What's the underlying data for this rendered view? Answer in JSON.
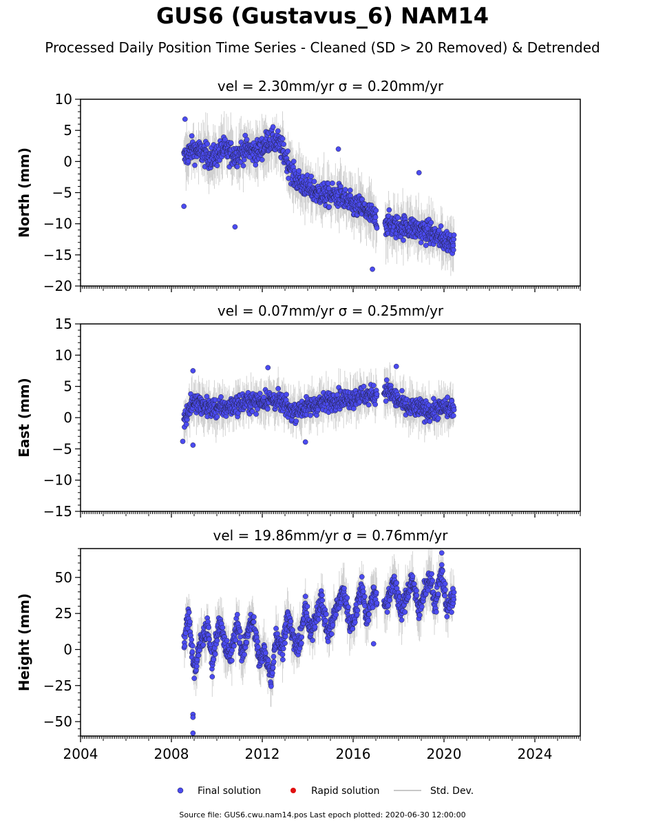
{
  "title": "GUS6 (Gustavus_6) NAM14",
  "subtitle": "Processed Daily Position Time Series - Cleaned (SD > 20 Removed) & Detrended",
  "source_note": "Source file: GUS6.cwu.nam14.pos  Last epoch plotted: 2020-06-30 12:00:00",
  "legend": {
    "final_label": "Final solution",
    "rapid_label": "Rapid solution",
    "sd_label": "Std. Dev."
  },
  "colors": {
    "final": "#4b4bf0",
    "rapid": "#e01010",
    "sd": "#c8c8c8"
  },
  "chart_data": [
    {
      "type": "scatter",
      "title": "vel = 2.30mm/yr   σ = 0.20mm/yr",
      "ylabel": "North (mm)",
      "xlim": [
        2004,
        2026
      ],
      "ylim": [
        -20,
        10
      ],
      "yticks": [
        -20,
        -15,
        -10,
        -5,
        0,
        5,
        10
      ],
      "xticks": [
        2004,
        2008,
        2012,
        2016,
        2020,
        2024
      ],
      "show_xticklabels": false,
      "series": [
        {
          "name": "Final solution",
          "x": [
            2008.55,
            2008.9,
            2009.3,
            2009.8,
            2010.3,
            2010.8,
            2011.3,
            2011.8,
            2012.3,
            2012.7,
            2013.0,
            2013.4,
            2013.9,
            2014.4,
            2014.9,
            2015.4,
            2015.9,
            2016.4,
            2016.9,
            2017.5,
            2017.9,
            2018.4,
            2018.9,
            2019.4,
            2019.9,
            2020.45
          ],
          "y": [
            0.5,
            2.0,
            1.5,
            0.5,
            2.0,
            1.0,
            2.0,
            1.5,
            3.5,
            3.0,
            1.0,
            -2.5,
            -4.0,
            -5.0,
            -5.5,
            -5.5,
            -7.0,
            -7.5,
            -9.0,
            -10.0,
            -10.5,
            -10.5,
            -11.0,
            -11.5,
            -12.5,
            -13.0
          ]
        }
      ],
      "outliers": [
        {
          "x": 2008.6,
          "y": 6.8
        },
        {
          "x": 2008.55,
          "y": -7.2
        },
        {
          "x": 2010.8,
          "y": -10.5
        },
        {
          "x": 2015.35,
          "y": 2.0
        },
        {
          "x": 2018.9,
          "y": -1.8
        },
        {
          "x": 2016.85,
          "y": -17.3
        }
      ]
    },
    {
      "type": "scatter",
      "title": "vel = 0.07mm/yr   σ = 0.25mm/yr",
      "ylabel": "East (mm)",
      "xlim": [
        2004,
        2026
      ],
      "ylim": [
        -15,
        15
      ],
      "yticks": [
        -15,
        -10,
        -5,
        0,
        5,
        10,
        15
      ],
      "xticks": [
        2004,
        2008,
        2012,
        2016,
        2020,
        2024
      ],
      "show_xticklabels": false,
      "series": [
        {
          "name": "Final solution",
          "x": [
            2008.55,
            2008.9,
            2009.3,
            2009.8,
            2010.3,
            2010.8,
            2011.3,
            2011.8,
            2012.3,
            2012.8,
            2013.3,
            2013.8,
            2014.3,
            2014.8,
            2015.3,
            2015.8,
            2016.3,
            2016.8,
            2017.5,
            2017.9,
            2018.4,
            2018.9,
            2019.4,
            2019.9,
            2020.45
          ],
          "y": [
            -0.5,
            2.5,
            2.0,
            1.5,
            1.5,
            2.0,
            2.5,
            2.5,
            3.0,
            2.5,
            1.0,
            1.5,
            2.0,
            2.5,
            3.0,
            3.0,
            3.5,
            3.5,
            4.5,
            3.0,
            1.5,
            1.5,
            1.0,
            1.5,
            1.5
          ]
        }
      ],
      "outliers": [
        {
          "x": 2008.5,
          "y": -3.8
        },
        {
          "x": 2008.95,
          "y": 7.5
        },
        {
          "x": 2012.25,
          "y": 8.0
        },
        {
          "x": 2013.9,
          "y": -3.9
        },
        {
          "x": 2017.9,
          "y": 8.2
        },
        {
          "x": 2008.95,
          "y": -4.4
        }
      ]
    },
    {
      "type": "scatter",
      "title": "vel = 19.86mm/yr   σ = 0.76mm/yr",
      "ylabel": "Height (mm)",
      "xlim": [
        2004,
        2026
      ],
      "ylim": [
        -60,
        70
      ],
      "yticks": [
        -50,
        -25,
        0,
        25,
        50
      ],
      "xticks": [
        2004,
        2008,
        2012,
        2016,
        2020,
        2024
      ],
      "show_xticklabels": true,
      "series": [
        {
          "name": "Final solution",
          "x": [
            2008.55,
            2008.75,
            2009.0,
            2009.3,
            2009.6,
            2009.8,
            2010.1,
            2010.4,
            2010.6,
            2010.9,
            2011.1,
            2011.4,
            2011.6,
            2011.9,
            2012.1,
            2012.4,
            2012.6,
            2012.9,
            2013.1,
            2013.4,
            2013.6,
            2013.9,
            2014.1,
            2014.4,
            2014.6,
            2014.9,
            2015.1,
            2015.4,
            2015.6,
            2015.9,
            2016.1,
            2016.4,
            2016.6,
            2016.9,
            2017.5,
            2017.8,
            2018.1,
            2018.4,
            2018.6,
            2018.9,
            2019.1,
            2019.4,
            2019.6,
            2019.9,
            2020.1,
            2020.45
          ],
          "y": [
            5,
            25,
            -15,
            5,
            15,
            -10,
            20,
            0,
            -5,
            20,
            -5,
            15,
            20,
            -10,
            0,
            -20,
            10,
            0,
            25,
            5,
            0,
            30,
            10,
            25,
            35,
            10,
            20,
            35,
            40,
            15,
            25,
            45,
            20,
            40,
            30,
            50,
            25,
            40,
            50,
            25,
            40,
            50,
            30,
            55,
            30,
            35
          ]
        }
      ],
      "outliers": [
        {
          "x": 2008.95,
          "y": -45
        },
        {
          "x": 2008.95,
          "y": -47
        },
        {
          "x": 2008.95,
          "y": -58
        },
        {
          "x": 2019.9,
          "y": 67
        },
        {
          "x": 2016.9,
          "y": 4
        }
      ]
    }
  ]
}
